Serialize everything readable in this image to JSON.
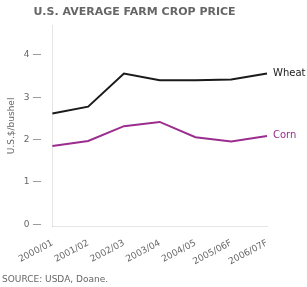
{
  "chart_data": {
    "type": "line",
    "title": "U.S. AVERAGE FARM CROP PRICE",
    "ylabel": "U.S.$/bushel",
    "source": "SOURCE: USDA, Doane.",
    "categories": [
      "2000/01",
      "2001/02",
      "2002/03",
      "2003/04",
      "2004/05",
      "2005/06F",
      "2006/07F"
    ],
    "series": [
      {
        "color": "#1a1a1a",
        "values": [
          2.62,
          2.78,
          3.56,
          3.4,
          3.4,
          3.42,
          3.56
        ]
      },
      {
        "color": "#9B2D8E",
        "values": [
          1.85,
          1.97,
          2.32,
          2.42,
          2.06,
          1.96,
          2.09
        ]
      }
    ],
    "annotations": [
      {
        "text": "Wheat",
        "x": "2006/07F",
        "y": 3.56
      },
      {
        "text": "Corn",
        "x": "2006/07F",
        "y": 2.09
      }
    ],
    "ylim": [
      -0.05,
      4.7
    ],
    "yticks": [
      {
        "value": 0,
        "label": "0 —"
      },
      {
        "value": 1,
        "label": "1 —"
      },
      {
        "value": 2,
        "label": "2 —"
      },
      {
        "value": 3,
        "label": "3 —"
      },
      {
        "value": 4,
        "label": "4 —"
      }
    ],
    "grid": false
  }
}
